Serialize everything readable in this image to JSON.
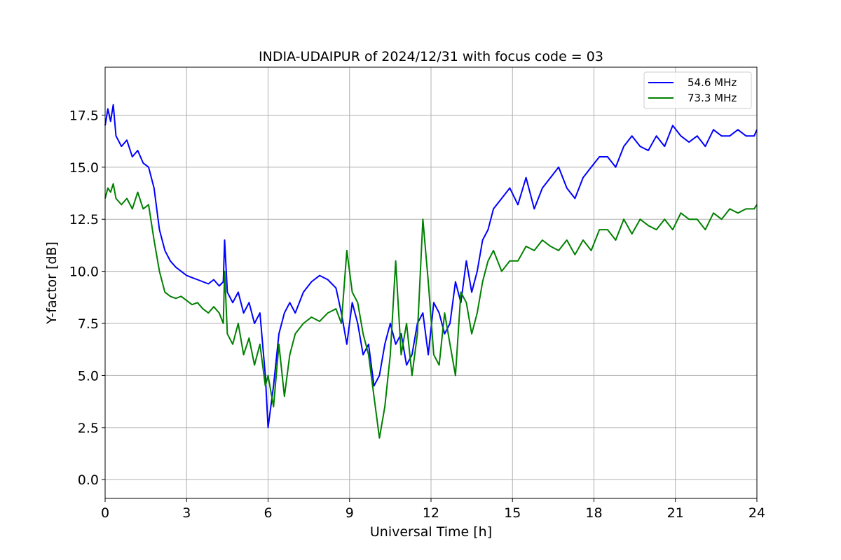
{
  "chart_data": {
    "type": "line",
    "title": "INDIA-UDAIPUR of 2024/12/31 with focus code = 03",
    "xlabel": "Universal Time [h]",
    "ylabel": "Y-factor [dB]",
    "xlim": [
      0,
      24
    ],
    "ylim": [
      -0.9,
      19.8
    ],
    "xticks": [
      0,
      3,
      6,
      9,
      12,
      15,
      18,
      21,
      24
    ],
    "yticks": [
      0.0,
      2.5,
      5.0,
      7.5,
      10.0,
      12.5,
      15.0,
      17.5
    ],
    "xtick_labels": [
      "0",
      "3",
      "6",
      "9",
      "12",
      "15",
      "18",
      "21",
      "24"
    ],
    "ytick_labels": [
      "0.0",
      "2.5",
      "5.0",
      "7.5",
      "10.0",
      "12.5",
      "15.0",
      "17.5"
    ],
    "grid": true,
    "legend_position": "top-right",
    "series": [
      {
        "name": "54.6 MHz",
        "color": "#0000ff",
        "x": [
          0.0,
          0.1,
          0.2,
          0.3,
          0.4,
          0.6,
          0.8,
          1.0,
          1.2,
          1.4,
          1.6,
          1.8,
          2.0,
          2.2,
          2.4,
          2.6,
          2.8,
          3.0,
          3.2,
          3.4,
          3.6,
          3.8,
          4.0,
          4.2,
          4.35,
          4.4,
          4.5,
          4.7,
          4.9,
          5.1,
          5.3,
          5.5,
          5.7,
          5.9,
          6.0,
          6.2,
          6.4,
          6.6,
          6.8,
          7.0,
          7.3,
          7.6,
          7.9,
          8.2,
          8.5,
          8.7,
          8.9,
          9.1,
          9.3,
          9.5,
          9.7,
          9.9,
          10.1,
          10.3,
          10.5,
          10.7,
          10.9,
          11.1,
          11.3,
          11.5,
          11.7,
          11.9,
          12.1,
          12.3,
          12.5,
          12.7,
          12.9,
          13.1,
          13.3,
          13.5,
          13.7,
          13.9,
          14.1,
          14.3,
          14.6,
          14.9,
          15.2,
          15.5,
          15.8,
          16.1,
          16.4,
          16.7,
          17.0,
          17.3,
          17.6,
          17.9,
          18.2,
          18.5,
          18.8,
          19.1,
          19.4,
          19.7,
          20.0,
          20.3,
          20.6,
          20.9,
          21.2,
          21.5,
          21.8,
          22.1,
          22.4,
          22.7,
          23.0,
          23.3,
          23.6,
          23.9,
          24.0
        ],
        "y": [
          17.0,
          17.8,
          17.2,
          18.0,
          16.5,
          16.0,
          16.3,
          15.5,
          15.8,
          15.2,
          15.0,
          14.0,
          12.0,
          11.0,
          10.5,
          10.2,
          10.0,
          9.8,
          9.7,
          9.6,
          9.5,
          9.4,
          9.6,
          9.3,
          9.5,
          11.5,
          9.0,
          8.5,
          9.0,
          8.0,
          8.5,
          7.5,
          8.0,
          5.0,
          2.5,
          4.5,
          7.0,
          8.0,
          8.5,
          8.0,
          9.0,
          9.5,
          9.8,
          9.6,
          9.2,
          8.0,
          6.5,
          8.5,
          7.5,
          6.0,
          6.5,
          4.5,
          5.0,
          6.5,
          7.5,
          6.5,
          7.0,
          5.5,
          6.0,
          7.5,
          8.0,
          6.0,
          8.5,
          8.0,
          7.0,
          7.5,
          9.5,
          8.5,
          10.5,
          9.0,
          10.0,
          11.5,
          12.0,
          13.0,
          13.5,
          14.0,
          13.2,
          14.5,
          13.0,
          14.0,
          14.5,
          15.0,
          14.0,
          13.5,
          14.5,
          15.0,
          15.5,
          15.5,
          15.0,
          16.0,
          16.5,
          16.0,
          15.8,
          16.5,
          16.0,
          17.0,
          16.5,
          16.2,
          16.5,
          16.0,
          16.8,
          16.5,
          16.5,
          16.8,
          16.5,
          16.5,
          16.8
        ]
      },
      {
        "name": "73.3 MHz",
        "color": "#008000",
        "x": [
          0.0,
          0.1,
          0.2,
          0.3,
          0.4,
          0.6,
          0.8,
          1.0,
          1.2,
          1.4,
          1.6,
          1.8,
          2.0,
          2.2,
          2.4,
          2.6,
          2.8,
          3.0,
          3.2,
          3.4,
          3.6,
          3.8,
          4.0,
          4.2,
          4.35,
          4.4,
          4.5,
          4.7,
          4.9,
          5.1,
          5.3,
          5.5,
          5.7,
          5.9,
          6.0,
          6.2,
          6.4,
          6.6,
          6.8,
          7.0,
          7.3,
          7.6,
          7.9,
          8.2,
          8.5,
          8.7,
          8.9,
          9.1,
          9.3,
          9.5,
          9.7,
          9.9,
          10.1,
          10.3,
          10.5,
          10.7,
          10.9,
          11.1,
          11.3,
          11.5,
          11.7,
          11.9,
          12.1,
          12.3,
          12.5,
          12.7,
          12.9,
          13.1,
          13.3,
          13.5,
          13.7,
          13.9,
          14.1,
          14.3,
          14.6,
          14.9,
          15.2,
          15.5,
          15.8,
          16.1,
          16.4,
          16.7,
          17.0,
          17.3,
          17.6,
          17.9,
          18.2,
          18.5,
          18.8,
          19.1,
          19.4,
          19.7,
          20.0,
          20.3,
          20.6,
          20.9,
          21.2,
          21.5,
          21.8,
          22.1,
          22.4,
          22.7,
          23.0,
          23.3,
          23.6,
          23.9,
          24.0
        ],
        "y": [
          13.5,
          14.0,
          13.8,
          14.2,
          13.5,
          13.2,
          13.5,
          13.0,
          13.8,
          13.0,
          13.2,
          11.5,
          10.0,
          9.0,
          8.8,
          8.7,
          8.8,
          8.6,
          8.4,
          8.5,
          8.2,
          8.0,
          8.3,
          8.0,
          7.5,
          10.0,
          7.0,
          6.5,
          7.5,
          6.0,
          6.8,
          5.5,
          6.5,
          4.5,
          5.0,
          3.5,
          6.5,
          4.0,
          6.0,
          7.0,
          7.5,
          7.8,
          7.6,
          8.0,
          8.2,
          7.5,
          11.0,
          9.0,
          8.5,
          7.0,
          6.0,
          4.0,
          2.0,
          3.5,
          6.0,
          10.5,
          6.0,
          7.5,
          5.0,
          7.0,
          12.5,
          9.5,
          6.0,
          5.5,
          8.0,
          6.5,
          5.0,
          9.0,
          8.5,
          7.0,
          8.0,
          9.5,
          10.5,
          11.0,
          10.0,
          10.5,
          10.5,
          11.2,
          11.0,
          11.5,
          11.2,
          11.0,
          11.5,
          10.8,
          11.5,
          11.0,
          12.0,
          12.0,
          11.5,
          12.5,
          11.8,
          12.5,
          12.2,
          12.0,
          12.5,
          12.0,
          12.8,
          12.5,
          12.5,
          12.0,
          12.8,
          12.5,
          13.0,
          12.8,
          13.0,
          13.0,
          13.2
        ]
      }
    ]
  }
}
